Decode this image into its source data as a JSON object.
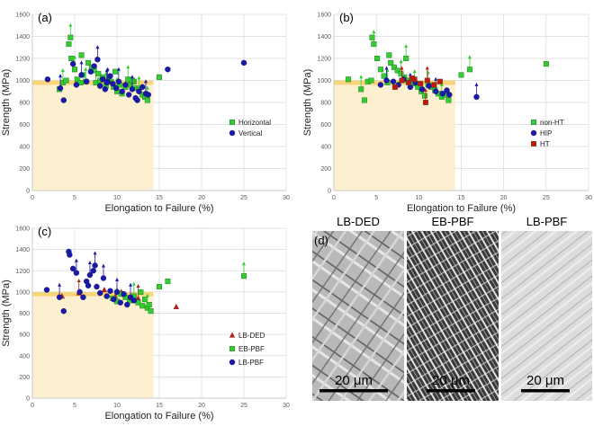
{
  "figure": {
    "micrograph_panel_label": "(d)",
    "micrographs": [
      {
        "title": "LB-DED",
        "scale_bar": "20 μm",
        "tone": "#b8b8b8"
      },
      {
        "title": "EB-PBF",
        "scale_bar": "20 μm",
        "tone": "#6a6a6a"
      },
      {
        "title": "LB-PBF",
        "scale_bar": "20 μm",
        "tone": "#d8d8d8"
      }
    ]
  },
  "chart_data": [
    {
      "panel": "(a)",
      "type": "scatter",
      "xlabel": "Elongation to Failure (%)",
      "ylabel": "Strength (MPa)",
      "xlim": [
        0,
        30
      ],
      "ylim": [
        0,
        1600
      ],
      "xticks": [
        0,
        5,
        10,
        15,
        20,
        25,
        30
      ],
      "yticks": [
        0,
        200,
        400,
        600,
        800,
        1000,
        1200,
        1400,
        1600
      ],
      "spec_region": {
        "elongation_max": 14.3,
        "strength_max": 1000,
        "band": [
          960,
          1000
        ]
      },
      "legend_position": "middle-right",
      "series": [
        {
          "name": "Horizontal",
          "marker": "square",
          "color": "#33cc33",
          "x": [
            3.2,
            3.6,
            4,
            4.3,
            4.6,
            5,
            5.3,
            5.7,
            6,
            6.3,
            6.6,
            7,
            7.3,
            7.5,
            7.8,
            8,
            8.3,
            8.7,
            9,
            9.3,
            9.6,
            10,
            10.3,
            10.6,
            11,
            11.3,
            11.6,
            12,
            12.3,
            12.6,
            13,
            13.3,
            15,
            4.5,
            5.8,
            9.8,
            11.8,
            13.6
          ],
          "y": [
            920,
            980,
            1000,
            1330,
            1200,
            1100,
            1010,
            980,
            1050,
            990,
            1160,
            1120,
            1090,
            980,
            1060,
            1000,
            1030,
            950,
            1010,
            990,
            940,
            900,
            960,
            880,
            940,
            1010,
            960,
            990,
            930,
            910,
            870,
            850,
            1030,
            1390,
            1230,
            1080,
            1000,
            820
          ]
        },
        {
          "name": "Vertical",
          "marker": "circle",
          "color": "#1a1aaa",
          "x": [
            1.8,
            3.3,
            3.7,
            4.8,
            5.2,
            5.8,
            6.4,
            6.9,
            7.3,
            7.7,
            8,
            8.3,
            8.6,
            8.9,
            9.2,
            9.5,
            9.9,
            10.2,
            10.6,
            11,
            11.4,
            11.8,
            12.2,
            12.6,
            13,
            13.4,
            13.7,
            16,
            25,
            8.8,
            12.4
          ],
          "y": [
            1010,
            930,
            820,
            1150,
            960,
            1050,
            990,
            1080,
            1130,
            1190,
            950,
            1010,
            920,
            990,
            1040,
            970,
            930,
            990,
            900,
            960,
            870,
            920,
            840,
            900,
            940,
            880,
            870,
            1100,
            1160,
            980,
            820
          ]
        }
      ]
    },
    {
      "panel": "(b)",
      "type": "scatter",
      "xlabel": "Elongation to Failure (%)",
      "ylabel": "Strength (MPa)",
      "xlim": [
        0,
        30
      ],
      "ylim": [
        0,
        1600
      ],
      "xticks": [
        0,
        5,
        10,
        15,
        20,
        25,
        30
      ],
      "yticks": [
        0,
        200,
        400,
        600,
        800,
        1000,
        1200,
        1400,
        1600
      ],
      "spec_region": {
        "elongation_max": 14.3,
        "strength_max": 1000,
        "band": [
          960,
          1000
        ]
      },
      "legend_position": "middle-right",
      "series": [
        {
          "name": "non-HT",
          "marker": "square",
          "color": "#33cc33",
          "x": [
            1.7,
            3.2,
            3.6,
            4,
            4.4,
            4.7,
            5.1,
            5.5,
            5.9,
            6.3,
            6.7,
            7.1,
            7.5,
            7.9,
            8.3,
            8.7,
            9.1,
            9.5,
            9.9,
            10.3,
            10.7,
            11.1,
            11.5,
            11.9,
            12.3,
            12.7,
            13.1,
            13.5,
            15,
            16,
            25,
            4.5,
            6.5,
            8.5
          ],
          "y": [
            1010,
            920,
            820,
            990,
            1000,
            1330,
            1200,
            1100,
            1040,
            980,
            1160,
            1120,
            1090,
            1060,
            1030,
            1000,
            1000,
            970,
            940,
            900,
            860,
            960,
            940,
            910,
            880,
            850,
            870,
            820,
            1050,
            1100,
            1150,
            1390,
            1230,
            1200
          ]
        },
        {
          "name": "HIP",
          "marker": "circle",
          "color": "#1a1aaa",
          "x": [
            5.5,
            6.2,
            7,
            7.6,
            8.2,
            9,
            9.6,
            10.4,
            11.2,
            12,
            12.8,
            13.3,
            13.6,
            16.8
          ],
          "y": [
            960,
            1000,
            990,
            960,
            1010,
            940,
            980,
            920,
            950,
            900,
            880,
            910,
            870,
            850
          ]
        },
        {
          "name": "HT",
          "marker": "square",
          "color": "#cc1111",
          "x": [
            7.2,
            8,
            8.8,
            9.5,
            10.2,
            11,
            11.8,
            12.5,
            9.2,
            10.8
          ],
          "y": [
            940,
            1000,
            980,
            1010,
            970,
            1000,
            960,
            990,
            1020,
            800
          ]
        }
      ]
    },
    {
      "panel": "(c)",
      "type": "scatter",
      "xlabel": "Elongation to Failure (%)",
      "ylabel": "Strength (MPa)",
      "xlim": [
        0,
        30
      ],
      "ylim": [
        0,
        1600
      ],
      "xticks": [
        0,
        5,
        10,
        15,
        20,
        25,
        30
      ],
      "yticks": [
        0,
        200,
        400,
        600,
        800,
        1000,
        1200,
        1400,
        1600
      ],
      "spec_region": {
        "elongation_max": 14.3,
        "strength_max": 1000,
        "band": [
          960,
          1000
        ]
      },
      "legend_position": "lower-right",
      "series": [
        {
          "name": "LB-DED",
          "marker": "triangle",
          "color": "#aa2222",
          "x": [
            3.5,
            5.5,
            8.5,
            9.8,
            10.5,
            12.5,
            17
          ],
          "y": [
            960,
            990,
            1020,
            960,
            1000,
            940,
            860
          ]
        },
        {
          "name": "EB-PBF",
          "marker": "square",
          "color": "#33cc33",
          "x": [
            9.5,
            10,
            10.5,
            11,
            11.5,
            12,
            12.5,
            13,
            13.3,
            13.6,
            14,
            15,
            16,
            25,
            12.8,
            13.8
          ],
          "y": [
            940,
            910,
            980,
            950,
            920,
            960,
            900,
            870,
            930,
            850,
            820,
            1050,
            1100,
            1150,
            1000,
            880
          ]
        },
        {
          "name": "LB-PBF",
          "marker": "circle",
          "color": "#1a1aaa",
          "x": [
            1.7,
            3.2,
            3.7,
            4.4,
            4.8,
            5.2,
            5.6,
            6,
            6.4,
            6.8,
            7.2,
            7.6,
            8,
            8.4,
            8.8,
            9.2,
            9.6,
            10,
            10.4,
            10.8,
            11.2,
            11.6,
            12,
            4.3,
            6.6,
            7.4
          ],
          "y": [
            1020,
            950,
            820,
            1350,
            1220,
            1180,
            1000,
            950,
            1100,
            1160,
            1200,
            1050,
            990,
            1130,
            960,
            1010,
            930,
            1000,
            900,
            980,
            880,
            950,
            920,
            1380,
            1060,
            1250
          ]
        }
      ]
    }
  ]
}
